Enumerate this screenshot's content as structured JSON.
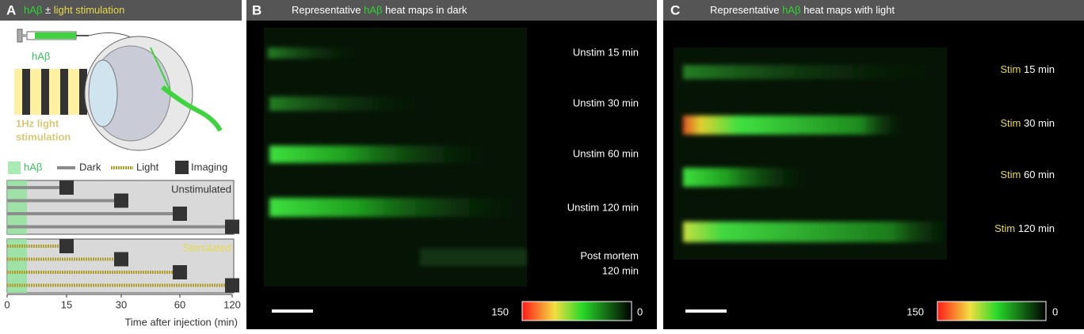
{
  "panel_a": {
    "letter": "A",
    "title": [
      "hAβ",
      " ± ",
      "light stimulation"
    ],
    "syringe_label": "hAβ",
    "stim_label": [
      "1Hz light",
      "stimulation"
    ],
    "legend": [
      "hAβ",
      "Dark",
      "Light",
      "Imaging"
    ]
  },
  "chart_data": {
    "type": "timeline",
    "xlabel": "Time after injection (min)",
    "xlim": [
      0,
      120
    ],
    "xticks": [
      0,
      15,
      30,
      60,
      120
    ],
    "injection_end": 5,
    "injection_color": "#8fe39a",
    "groups": [
      {
        "name": "Unstimulated",
        "color": "#8c8c8c",
        "dashed": false,
        "imaging": [
          15,
          30,
          60,
          120
        ]
      },
      {
        "name": "Stimulated",
        "color": "#b0a030",
        "dashed": true,
        "imaging": [
          15,
          30,
          60,
          120
        ]
      }
    ]
  },
  "panel_b": {
    "letter": "B",
    "title": [
      "Representative ",
      "hAβ",
      " heat maps in dark"
    ],
    "labels": [
      [
        "Unstim 15 min"
      ],
      [
        "Unstim 30 min"
      ],
      [
        "Unstim 60 min"
      ],
      [
        "Unstim 120 min"
      ],
      [
        "Post mortem",
        "120 min"
      ]
    ],
    "scale_max": 150,
    "scale_min": 0
  },
  "panel_c": {
    "letter": "C",
    "title": [
      "Representative ",
      "hAβ",
      " heat maps with light"
    ],
    "labels": [
      {
        "prefix": "Stim",
        "text": " 15 min"
      },
      {
        "prefix": "Stim",
        "text": " 30 min"
      },
      {
        "prefix": "Stim",
        "text": " 60 min"
      },
      {
        "prefix": "Stim",
        "text": " 120 min"
      }
    ],
    "scale_max": 150,
    "scale_min": 0
  }
}
